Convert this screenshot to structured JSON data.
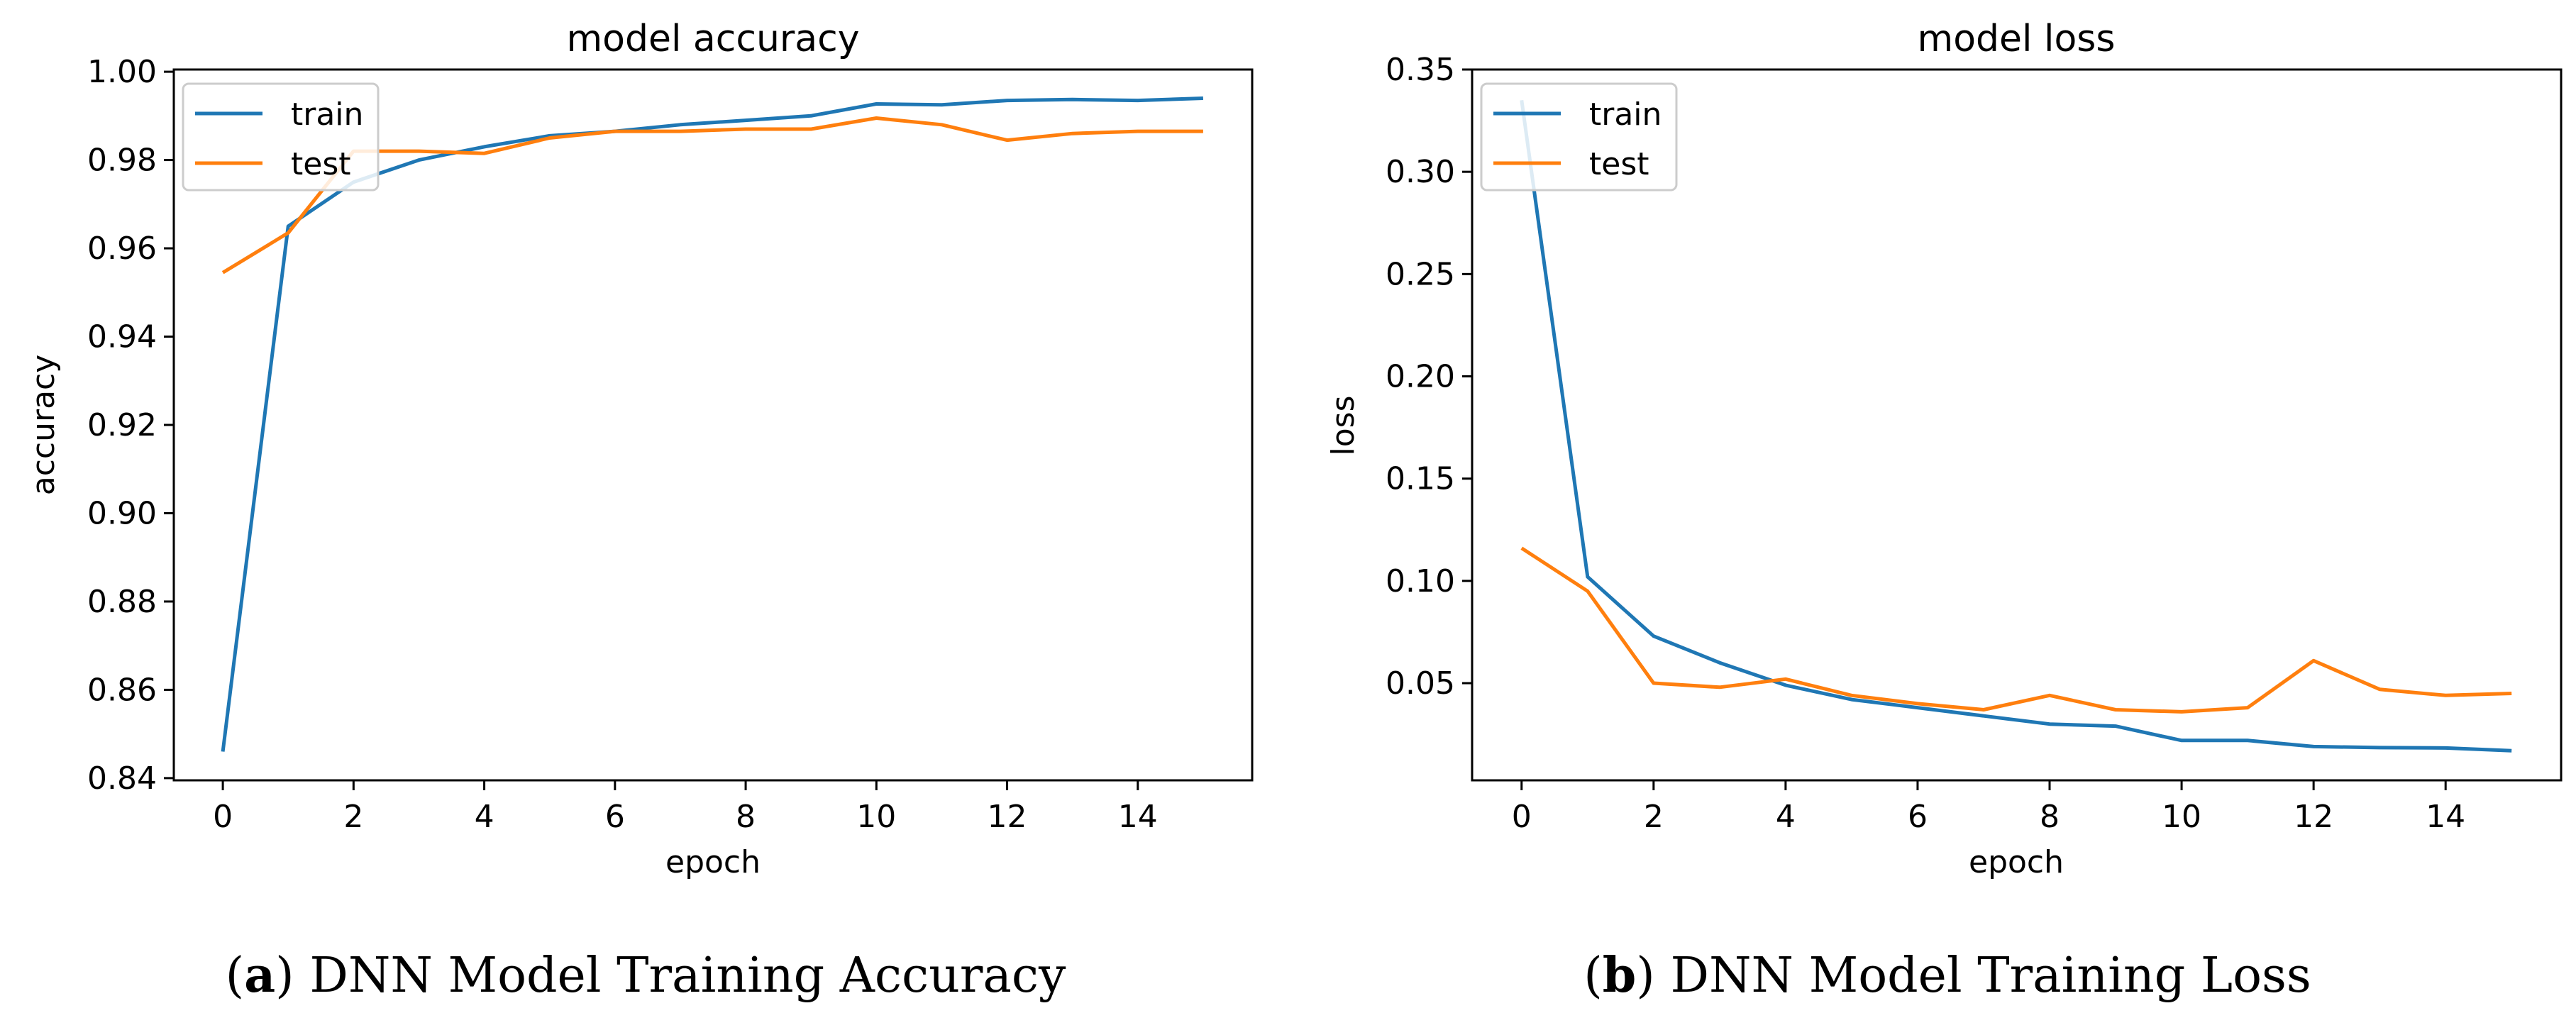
{
  "chart_data": [
    {
      "type": "line",
      "title": "model accuracy",
      "xlabel": "epoch",
      "ylabel": "accuracy",
      "x": [
        0,
        1,
        2,
        3,
        4,
        5,
        6,
        7,
        8,
        9,
        10,
        11,
        12,
        13,
        14,
        15
      ],
      "xlim": [
        -0.75,
        15.75
      ],
      "ylim": [
        0.8395,
        1.0005
      ],
      "xticks": [
        0,
        2,
        4,
        6,
        8,
        10,
        12,
        14
      ],
      "xtick_labels": [
        "0",
        "2",
        "4",
        "6",
        "8",
        "10",
        "12",
        "14"
      ],
      "yticks": [
        0.84,
        0.86,
        0.88,
        0.9,
        0.92,
        0.94,
        0.96,
        0.98,
        1.0
      ],
      "ytick_labels": [
        "0.84",
        "0.86",
        "0.88",
        "0.90",
        "0.92",
        "0.94",
        "0.96",
        "0.98",
        "1.00"
      ],
      "legend_position": "top-left",
      "series": [
        {
          "name": "train",
          "color": "#1f77b4",
          "values": [
            0.846,
            0.965,
            0.975,
            0.98,
            0.983,
            0.9855,
            0.9865,
            0.988,
            0.989,
            0.99,
            0.9927,
            0.9925,
            0.9935,
            0.9937,
            0.9935,
            0.994
          ]
        },
        {
          "name": "test",
          "color": "#ff7f0e",
          "values": [
            0.9545,
            0.9635,
            0.982,
            0.982,
            0.9815,
            0.985,
            0.9865,
            0.9865,
            0.987,
            0.987,
            0.9895,
            0.988,
            0.9845,
            0.986,
            0.9865,
            0.9865
          ]
        }
      ],
      "caption_label": "a",
      "caption_text": "DNN Model Training Accuracy"
    },
    {
      "type": "line",
      "title": "model loss",
      "xlabel": "epoch",
      "ylabel": "loss",
      "x": [
        0,
        1,
        2,
        3,
        4,
        5,
        6,
        7,
        8,
        9,
        10,
        11,
        12,
        13,
        14,
        15
      ],
      "xlim": [
        -0.75,
        15.75
      ],
      "ylim": [
        0.0025,
        0.35
      ],
      "xticks": [
        0,
        2,
        4,
        6,
        8,
        10,
        12,
        14
      ],
      "xtick_labels": [
        "0",
        "2",
        "4",
        "6",
        "8",
        "10",
        "12",
        "14"
      ],
      "yticks": [
        0.05,
        0.1,
        0.15,
        0.2,
        0.25,
        0.3,
        0.35
      ],
      "ytick_labels": [
        "0.05",
        "0.10",
        "0.15",
        "0.20",
        "0.25",
        "0.30",
        "0.35"
      ],
      "legend_position": "top-left",
      "series": [
        {
          "name": "train",
          "color": "#1f77b4",
          "values": [
            0.335,
            0.102,
            0.073,
            0.06,
            0.049,
            0.042,
            0.038,
            0.034,
            0.03,
            0.029,
            0.022,
            0.022,
            0.019,
            0.0185,
            0.0183,
            0.017
          ]
        },
        {
          "name": "test",
          "color": "#ff7f0e",
          "values": [
            0.116,
            0.095,
            0.05,
            0.048,
            0.052,
            0.044,
            0.04,
            0.037,
            0.044,
            0.037,
            0.036,
            0.038,
            0.061,
            0.047,
            0.044,
            0.045
          ]
        }
      ],
      "caption_label": "b",
      "caption_text": "DNN Model Training Loss"
    }
  ]
}
